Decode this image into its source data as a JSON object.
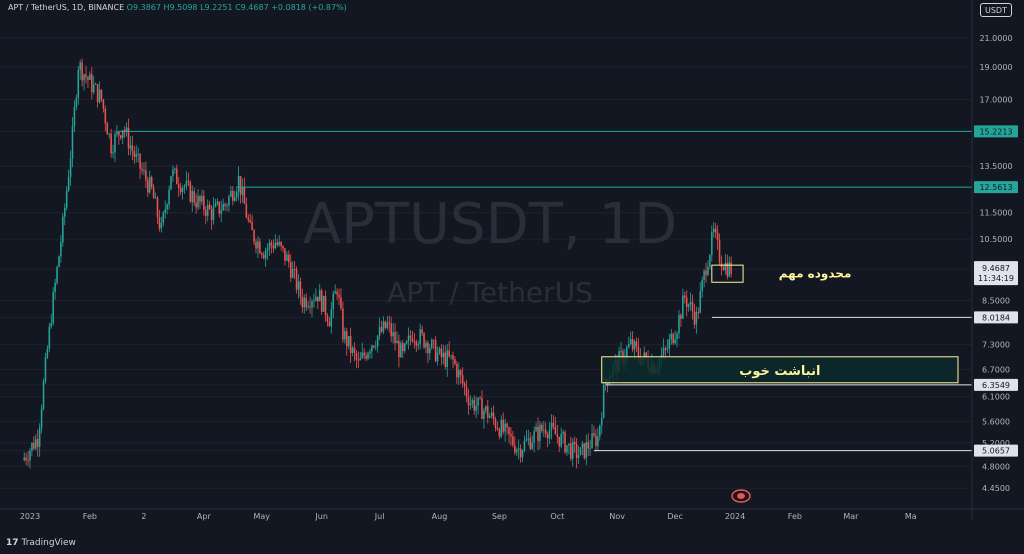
{
  "header": {
    "symbol_line": "APT / TetherUS, 1D, BINANCE",
    "open": "O9.3867",
    "high": "H9.5098",
    "low": "L9.2251",
    "close": "C9.4687",
    "change": "+0.0818 (+0.87%)"
  },
  "currency_button": "USDT",
  "watermark": {
    "main": "APTUSDT, 1D",
    "sub": "APT / TetherUS"
  },
  "brand": {
    "logo": "17",
    "name": "TradingView"
  },
  "colors": {
    "background": "#131722",
    "up": "#26a69a",
    "down": "#ef5350",
    "teal_line": "#26a69a",
    "white_line": "#e0e3eb",
    "zone": "#fff59d",
    "zone_fill": "#0c2a2a",
    "grid": "#1e222d"
  },
  "chart_data": {
    "type": "candlestick",
    "y_scale": "log",
    "ylim": [
      4.2,
      22.5
    ],
    "y_ticks": [
      "21.0000",
      "19.0000",
      "17.0000",
      "15.2213",
      "13.5000",
      "12.5613",
      "11.5000",
      "10.5000",
      "9.4687",
      "8.5000",
      "8.0184",
      "7.3000",
      "6.7000",
      "6.3549",
      "6.1000",
      "5.6000",
      "5.2000",
      "5.0657",
      "4.8000",
      "4.4500"
    ],
    "x_ticks": [
      "2023",
      "Feb",
      "2",
      "Apr",
      "May",
      "Jun",
      "Jul",
      "Aug",
      "Sep",
      "Oct",
      "Nov",
      "Dec",
      "2024",
      "Feb",
      "Mar",
      "Ma"
    ],
    "last_price": {
      "value": "9.4687",
      "countdown": "11:34:19"
    },
    "horizontal_levels": [
      {
        "value": 15.2213,
        "label": "15.2213",
        "style": "teal"
      },
      {
        "value": 12.5613,
        "label": "12.5613",
        "style": "teal"
      },
      {
        "value": 8.0184,
        "label": "8.0184",
        "style": "white"
      },
      {
        "value": 6.3549,
        "label": "6.3549",
        "style": "white"
      },
      {
        "value": 5.0657,
        "label": "5.0657",
        "style": "white"
      }
    ],
    "zones": [
      {
        "label": "محدوده مهم",
        "from_date": "2023-12-20",
        "to_date": "2023-12-31",
        "low": 9.05,
        "high": 9.6
      },
      {
        "label": "انباشت خوب",
        "from_date": "2023-10-24",
        "to_date": "2024-04-01",
        "low": 6.4,
        "high": 7.0
      }
    ],
    "price_path": [
      [
        "2022-12-28",
        4.9
      ],
      [
        "2023-01-05",
        5.3
      ],
      [
        "2023-01-12",
        8.1
      ],
      [
        "2023-01-18",
        11.0
      ],
      [
        "2023-01-23",
        15.0
      ],
      [
        "2023-01-26",
        19.2
      ],
      [
        "2023-01-30",
        18.4
      ],
      [
        "2023-02-07",
        17.0
      ],
      [
        "2023-02-12",
        14.5
      ],
      [
        "2023-02-18",
        15.5
      ],
      [
        "2023-02-25",
        13.8
      ],
      [
        "2023-03-05",
        12.4
      ],
      [
        "2023-03-10",
        10.8
      ],
      [
        "2023-03-15",
        13.2
      ],
      [
        "2023-03-22",
        12.6
      ],
      [
        "2023-03-28",
        12.0
      ],
      [
        "2023-04-05",
        11.5
      ],
      [
        "2023-04-12",
        11.8
      ],
      [
        "2023-04-19",
        12.9
      ],
      [
        "2023-04-25",
        10.8
      ],
      [
        "2023-05-02",
        10.1
      ],
      [
        "2023-05-08",
        10.4
      ],
      [
        "2023-05-15",
        9.7
      ],
      [
        "2023-05-22",
        8.5
      ],
      [
        "2023-05-30",
        8.7
      ],
      [
        "2023-06-05",
        8.0
      ],
      [
        "2023-06-09",
        8.9
      ],
      [
        "2023-06-12",
        7.6
      ],
      [
        "2023-06-20",
        6.8
      ],
      [
        "2023-06-26",
        7.3
      ],
      [
        "2023-07-05",
        7.8
      ],
      [
        "2023-07-13",
        7.0
      ],
      [
        "2023-07-18",
        7.6
      ],
      [
        "2023-07-25",
        7.4
      ],
      [
        "2023-08-01",
        7.0
      ],
      [
        "2023-08-08",
        6.9
      ],
      [
        "2023-08-17",
        6.0
      ],
      [
        "2023-08-25",
        5.8
      ],
      [
        "2023-09-01",
        5.5
      ],
      [
        "2023-09-11",
        5.1
      ],
      [
        "2023-09-18",
        5.3
      ],
      [
        "2023-09-25",
        5.5
      ],
      [
        "2023-10-02",
        5.3
      ],
      [
        "2023-10-09",
        5.05
      ],
      [
        "2023-10-13",
        5.0
      ],
      [
        "2023-10-18",
        5.2
      ],
      [
        "2023-10-22",
        5.3
      ],
      [
        "2023-10-26",
        6.5
      ],
      [
        "2023-11-02",
        6.9
      ],
      [
        "2023-11-08",
        7.3
      ],
      [
        "2023-11-13",
        7.0
      ],
      [
        "2023-11-20",
        6.8
      ],
      [
        "2023-11-26",
        7.1
      ],
      [
        "2023-12-02",
        7.8
      ],
      [
        "2023-12-06",
        8.6
      ],
      [
        "2023-12-12",
        8.0
      ],
      [
        "2023-12-17",
        9.6
      ],
      [
        "2023-12-21",
        10.7
      ],
      [
        "2023-12-24",
        9.9
      ],
      [
        "2023-12-27",
        9.6
      ],
      [
        "2023-12-30",
        9.4687
      ]
    ]
  }
}
